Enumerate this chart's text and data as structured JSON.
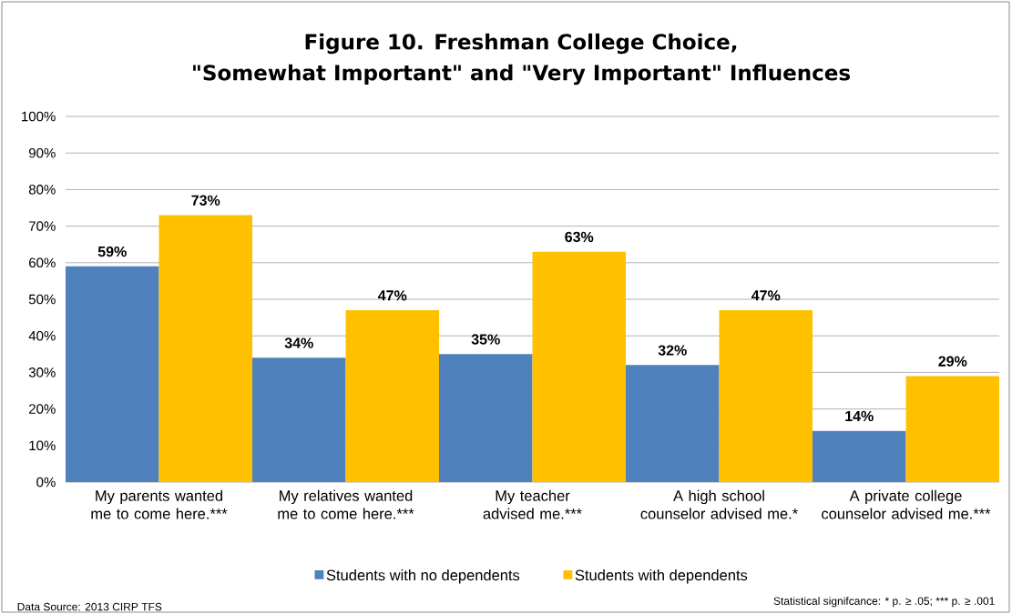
{
  "chart_data": {
    "type": "bar",
    "title": "Figure 10. Freshman College Choice,",
    "subtitle": "\"Somewhat Important\" and \"Very Important\" Influences",
    "categories": [
      "My parents wanted me to come here.***",
      "My relatives wanted me to come here.***",
      "My teacher advised me.***",
      "A high school counselor advised me.*",
      "A private college counselor advised me.***"
    ],
    "series": [
      {
        "name": "Students with no dependents",
        "color": "#4f81bd",
        "values": [
          59,
          34,
          35,
          32,
          14
        ],
        "value_labels": [
          "59%",
          "34%",
          "35%",
          "32%",
          "14%"
        ]
      },
      {
        "name": "Students with dependents",
        "color": "#ffc000",
        "values": [
          73,
          47,
          63,
          47,
          29
        ],
        "value_labels": [
          "73%",
          "47%",
          "63%",
          "47%",
          "29%"
        ]
      }
    ],
    "ylim": [
      0,
      100
    ],
    "yticks": [
      {
        "value": 0,
        "label": "0%"
      },
      {
        "value": 10,
        "label": "10%"
      },
      {
        "value": 20,
        "label": "20%"
      },
      {
        "value": 30,
        "label": "30%"
      },
      {
        "value": 40,
        "label": "40%"
      },
      {
        "value": 50,
        "label": "50%"
      },
      {
        "value": 60,
        "label": "60%"
      },
      {
        "value": 70,
        "label": "70%"
      },
      {
        "value": 80,
        "label": "80%"
      },
      {
        "value": 90,
        "label": "90%"
      },
      {
        "value": 100,
        "label": "100%"
      }
    ],
    "grid": "y",
    "legend": "bottom",
    "annotations": [
      "Data Source: 2013  CIRP TFS",
      "Statistical signifcance: * p. ≥ .05; *** p. ≥ .001"
    ]
  }
}
